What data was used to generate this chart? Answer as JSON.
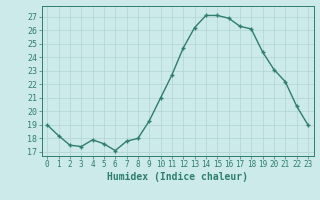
{
  "x": [
    0,
    1,
    2,
    3,
    4,
    5,
    6,
    7,
    8,
    9,
    10,
    11,
    12,
    13,
    14,
    15,
    16,
    17,
    18,
    19,
    20,
    21,
    22,
    23
  ],
  "y": [
    19.0,
    18.2,
    17.5,
    17.4,
    17.9,
    17.6,
    17.1,
    17.8,
    18.0,
    19.3,
    21.0,
    22.7,
    24.7,
    26.2,
    27.1,
    27.1,
    26.9,
    26.3,
    26.1,
    24.4,
    23.1,
    22.2,
    20.4,
    19.0
  ],
  "xlabel": "Humidex (Indice chaleur)",
  "ylim": [
    16.7,
    27.8
  ],
  "xlim": [
    -0.5,
    23.5
  ],
  "yticks": [
    17,
    18,
    19,
    20,
    21,
    22,
    23,
    24,
    25,
    26,
    27
  ],
  "xticks": [
    0,
    1,
    2,
    3,
    4,
    5,
    6,
    7,
    8,
    9,
    10,
    11,
    12,
    13,
    14,
    15,
    16,
    17,
    18,
    19,
    20,
    21,
    22,
    23
  ],
  "line_color": "#2e7d6e",
  "marker": "+",
  "bg_color": "#cdeaea",
  "grid_color": "#b0d4d4",
  "tick_color": "#2e7d6e",
  "label_color": "#2e7d6e",
  "xlabel_fontsize": 7,
  "ytick_fontsize": 6,
  "xtick_fontsize": 5.5
}
